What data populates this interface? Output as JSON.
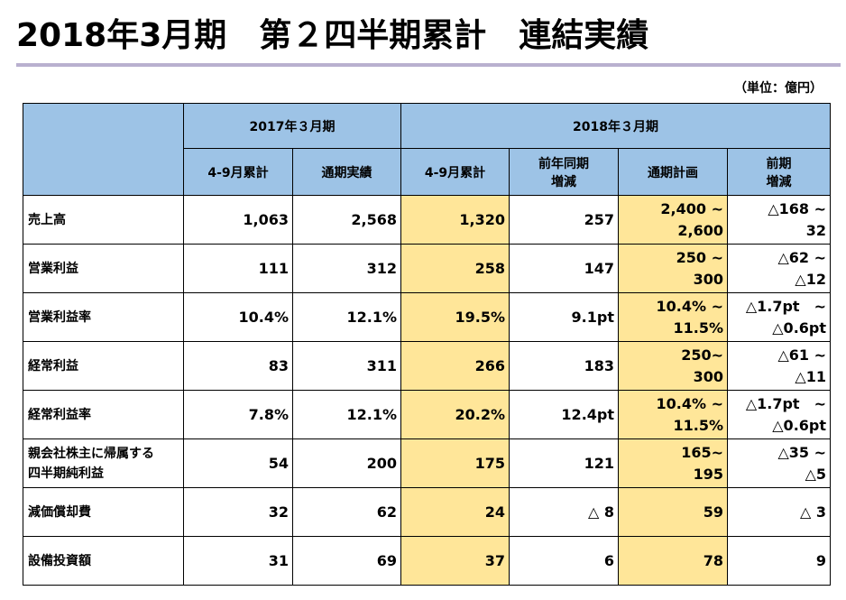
{
  "title": "2018年3月期　第２四半期累計　連結実績",
  "unit": "（単位：億円）",
  "header": {
    "fy2017": "2017年３月期",
    "fy2018": "2018年３月期",
    "cols": [
      "4-9月累計",
      "通期実績",
      "4-9月累計",
      "前年同期",
      "増減",
      "通期計画",
      "前期",
      "増減"
    ]
  },
  "rows": [
    {
      "label": [
        "売上高",
        ""
      ],
      "c": [
        "1,063",
        "2,568",
        "1,320",
        "257",
        "2,400 ~",
        "2,600",
        "△168 ~",
        "32"
      ]
    },
    {
      "label": [
        "営業利益",
        ""
      ],
      "c": [
        "111",
        "312",
        "258",
        "147",
        "250 ~",
        "300",
        "△62 ~",
        "△12"
      ]
    },
    {
      "label": [
        "営業利益率",
        ""
      ],
      "c": [
        "10.4%",
        "12.1%",
        "19.5%",
        "9.1pt",
        "10.4% ~",
        "11.5%",
        "△1.7pt　~",
        "△0.6pt"
      ]
    },
    {
      "label": [
        "経常利益",
        ""
      ],
      "c": [
        "83",
        "311",
        "266",
        "183",
        "250~",
        "300",
        "△61 ~",
        "△11"
      ]
    },
    {
      "label": [
        "経常利益率",
        ""
      ],
      "c": [
        "7.8%",
        "12.1%",
        "20.2%",
        "12.4pt",
        "10.4% ~",
        "11.5%",
        "△1.7pt　~",
        "△0.6pt"
      ]
    },
    {
      "label": [
        "親会社株主に帰属する",
        "四半期純利益"
      ],
      "c": [
        "54",
        "200",
        "175",
        "121",
        "165~",
        "195",
        "△35 ~",
        "△5"
      ]
    },
    {
      "label": [
        "減価償却費",
        ""
      ],
      "c": [
        "32",
        "62",
        "24",
        "△ 8",
        "59",
        "",
        "△ 3",
        ""
      ]
    },
    {
      "label": [
        "設備投資額",
        ""
      ],
      "c": [
        "31",
        "69",
        "37",
        "6",
        "78",
        "",
        "9",
        ""
      ]
    }
  ]
}
